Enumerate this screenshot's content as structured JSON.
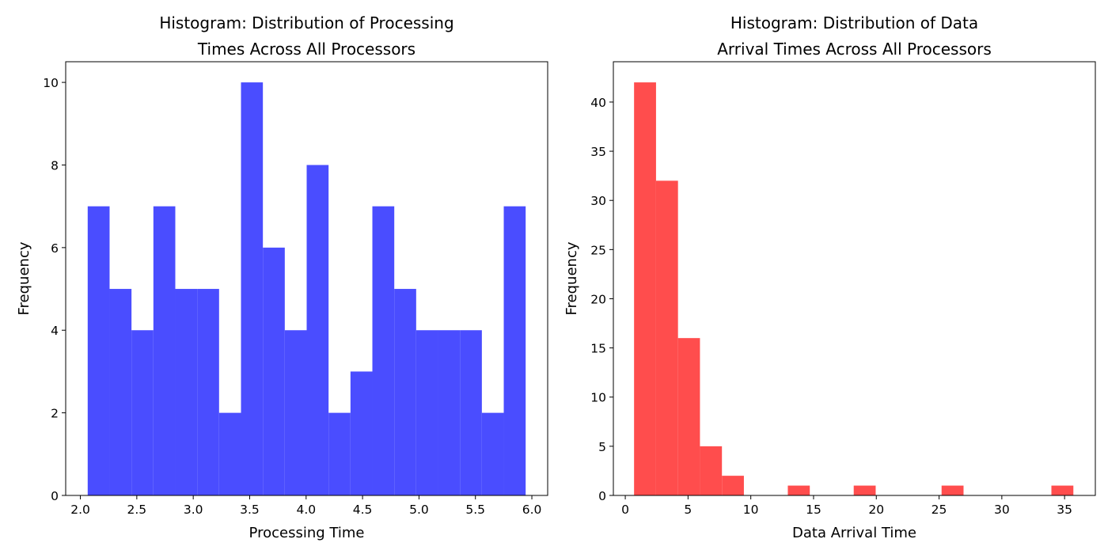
{
  "chart_data": [
    {
      "type": "bar",
      "title_lines": [
        "Histogram: Distribution of Processing",
        "Times Across All Processors"
      ],
      "xlabel": "Processing Time",
      "ylabel": "Frequency",
      "color": "#4a4dff",
      "xlim": [
        1.87,
        6.14
      ],
      "ylim": [
        0,
        10.5
      ],
      "xticks": [
        2.0,
        2.5,
        3.0,
        3.5,
        4.0,
        4.5,
        5.0,
        5.5,
        6.0
      ],
      "xtick_labels": [
        "2.0",
        "2.5",
        "3.0",
        "3.5",
        "4.0",
        "4.5",
        "5.0",
        "5.5",
        "6.0"
      ],
      "yticks": [
        0,
        2,
        4,
        6,
        8,
        10
      ],
      "ytick_labels": [
        "0",
        "2",
        "4",
        "6",
        "8",
        "10"
      ],
      "bins": [
        {
          "x0": 2.065,
          "x1": 2.259,
          "count": 7
        },
        {
          "x0": 2.259,
          "x1": 2.453,
          "count": 5
        },
        {
          "x0": 2.453,
          "x1": 2.647,
          "count": 4
        },
        {
          "x0": 2.647,
          "x1": 2.841,
          "count": 7
        },
        {
          "x0": 2.841,
          "x1": 3.035,
          "count": 5
        },
        {
          "x0": 3.035,
          "x1": 3.229,
          "count": 5
        },
        {
          "x0": 3.229,
          "x1": 3.423,
          "count": 2
        },
        {
          "x0": 3.423,
          "x1": 3.617,
          "count": 10
        },
        {
          "x0": 3.617,
          "x1": 3.811,
          "count": 6
        },
        {
          "x0": 3.811,
          "x1": 4.005,
          "count": 4
        },
        {
          "x0": 4.005,
          "x1": 4.199,
          "count": 8
        },
        {
          "x0": 4.199,
          "x1": 4.393,
          "count": 2
        },
        {
          "x0": 4.393,
          "x1": 4.587,
          "count": 3
        },
        {
          "x0": 4.587,
          "x1": 4.781,
          "count": 7
        },
        {
          "x0": 4.781,
          "x1": 4.975,
          "count": 5
        },
        {
          "x0": 4.975,
          "x1": 5.169,
          "count": 4
        },
        {
          "x0": 5.169,
          "x1": 5.363,
          "count": 4
        },
        {
          "x0": 5.363,
          "x1": 5.557,
          "count": 4
        },
        {
          "x0": 5.557,
          "x1": 5.751,
          "count": 2
        },
        {
          "x0": 5.751,
          "x1": 5.945,
          "count": 7
        }
      ]
    },
    {
      "type": "bar",
      "title_lines": [
        "Histogram: Distribution of Data",
        "Arrival Times Across All Processors"
      ],
      "xlabel": "Data Arrival Time",
      "ylabel": "Frequency",
      "color": "#ff4d4d",
      "xlim": [
        -0.95,
        37.45
      ],
      "ylim": [
        0,
        44.1
      ],
      "xticks": [
        0,
        5,
        10,
        15,
        20,
        25,
        30,
        35
      ],
      "xtick_labels": [
        "0",
        "5",
        "10",
        "15",
        "20",
        "25",
        "30",
        "35"
      ],
      "yticks": [
        0,
        5,
        10,
        15,
        20,
        25,
        30,
        35,
        40
      ],
      "ytick_labels": [
        "0",
        "5",
        "10",
        "15",
        "20",
        "25",
        "30",
        "35",
        "40"
      ],
      "bins": [
        {
          "x0": 0.7,
          "x1": 2.45,
          "count": 42
        },
        {
          "x0": 2.45,
          "x1": 4.2,
          "count": 32
        },
        {
          "x0": 4.2,
          "x1": 5.95,
          "count": 16
        },
        {
          "x0": 5.95,
          "x1": 7.7,
          "count": 5
        },
        {
          "x0": 7.7,
          "x1": 9.45,
          "count": 2
        },
        {
          "x0": 9.45,
          "x1": 11.2,
          "count": 0
        },
        {
          "x0": 11.2,
          "x1": 12.95,
          "count": 0
        },
        {
          "x0": 12.95,
          "x1": 14.7,
          "count": 1
        },
        {
          "x0": 14.7,
          "x1": 16.45,
          "count": 0
        },
        {
          "x0": 16.45,
          "x1": 18.2,
          "count": 0
        },
        {
          "x0": 18.2,
          "x1": 19.95,
          "count": 1
        },
        {
          "x0": 19.95,
          "x1": 21.7,
          "count": 0
        },
        {
          "x0": 21.7,
          "x1": 23.45,
          "count": 0
        },
        {
          "x0": 23.45,
          "x1": 25.2,
          "count": 0
        },
        {
          "x0": 25.2,
          "x1": 26.95,
          "count": 1
        },
        {
          "x0": 26.95,
          "x1": 28.7,
          "count": 0
        },
        {
          "x0": 28.7,
          "x1": 30.45,
          "count": 0
        },
        {
          "x0": 30.45,
          "x1": 32.2,
          "count": 0
        },
        {
          "x0": 32.2,
          "x1": 33.95,
          "count": 0
        },
        {
          "x0": 33.95,
          "x1": 35.7,
          "count": 1
        }
      ]
    }
  ]
}
